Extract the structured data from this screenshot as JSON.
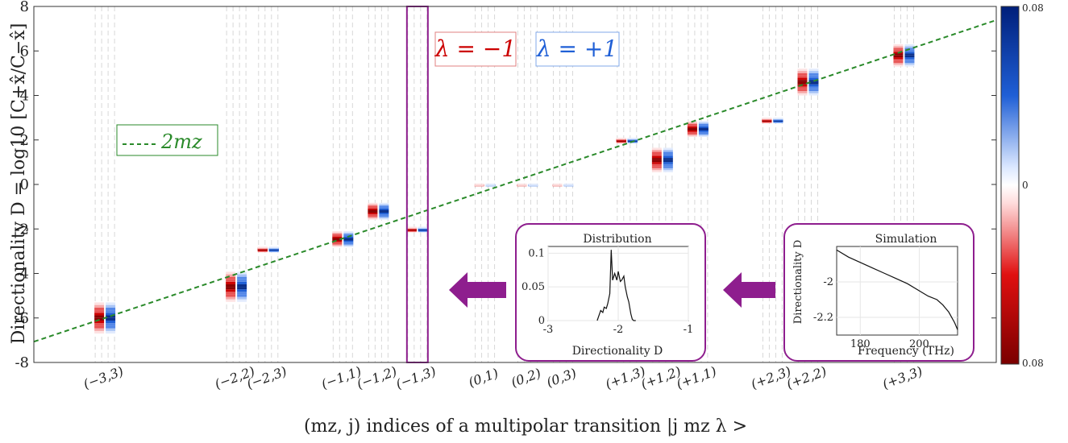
{
  "chart_data": {
    "type": "heatmap",
    "ylabel": "Directionality D = log10 [C+x̂/C−x̂]",
    "xlabel": "(mz, j) indices of a multipolar transition |j  mz  λ >",
    "ylim": [
      -8,
      8
    ],
    "yticks": [
      "-8",
      "-6",
      "-4",
      "-2",
      "0",
      "2",
      "4",
      "6",
      "8"
    ],
    "grid": false,
    "categories": [
      "(−3,3)",
      "(−2,2)",
      "(−2,3)",
      "(−1,1)",
      "(−1,2)",
      "(−1,3)",
      "(0,1)",
      "(0,2)",
      "(0,3)",
      "(+1,3)",
      "(+1,2)",
      "(+1,1)",
      "(+2,3)",
      "(+2,2)",
      "(+3,3)"
    ],
    "category_positions": [
      1,
      2.85,
      3.3,
      4.35,
      4.85,
      5.4,
      6.35,
      6.95,
      7.45,
      8.35,
      8.85,
      9.35,
      10.4,
      10.9,
      12.25
    ],
    "xlim": [
      0,
      13.55
    ],
    "centers": [
      -6.0,
      -4.6,
      -2.9,
      -2.45,
      -1.2,
      -2.0,
      0.0,
      0.0,
      0.0,
      2.0,
      1.1,
      2.5,
      2.9,
      4.6,
      5.8
    ],
    "spreads": [
      1.4,
      1.35,
      0.2,
      0.7,
      0.75,
      0.2,
      0.02,
      0.02,
      0.02,
      0.2,
      1.1,
      0.7,
      0.2,
      1.2,
      1.0
    ],
    "series": [
      {
        "name": "λ = −1",
        "color": "#cc0000"
      },
      {
        "name": "λ = +1",
        "color": "#1f5fd6"
      }
    ],
    "trend_line": {
      "name": "2mz",
      "color": "#2a8a2a",
      "slope": 2,
      "intercept": 0
    },
    "highlighted_category": "(−1,3)",
    "colorbar": {
      "labels": [
        "0.08",
        "0",
        "0.08"
      ],
      "colors": [
        "#001f7a",
        "#ffffff",
        "#7a0000"
      ]
    },
    "inset_distribution": {
      "title": "Distribution",
      "xlabel": "Directionality D",
      "xticks": [
        "-3",
        "-2",
        "-1"
      ],
      "yticks": [
        "0",
        "0.05",
        "0.1"
      ],
      "xlim": [
        -3,
        -1
      ],
      "ylim": [
        0,
        0.11
      ],
      "x": [
        -2.3,
        -2.25,
        -2.22,
        -2.2,
        -2.17,
        -2.15,
        -2.12,
        -2.1,
        -2.08,
        -2.05,
        -2.02,
        -2.0,
        -1.97,
        -1.95,
        -1.92,
        -1.9,
        -1.87,
        -1.85,
        -1.82,
        -1.8,
        -1.78,
        -1.75
      ],
      "y": [
        0.0,
        0.015,
        0.012,
        0.02,
        0.018,
        0.025,
        0.04,
        0.105,
        0.06,
        0.07,
        0.06,
        0.073,
        0.058,
        0.06,
        0.066,
        0.05,
        0.035,
        0.028,
        0.01,
        0.002,
        0.0,
        0.0
      ]
    },
    "inset_simulation": {
      "title": "Simulation",
      "xlabel": "Frequency (THz)",
      "ylabel": "Directionality D",
      "xticks": [
        "180",
        "200"
      ],
      "yticks": [
        "-2",
        "-2.2"
      ],
      "xlim": [
        172,
        213
      ],
      "ylim": [
        -2.3,
        -1.8
      ],
      "x": [
        172,
        176,
        180,
        184,
        188,
        192,
        196,
        200,
        203,
        206,
        208,
        210,
        212,
        213
      ],
      "y": [
        -1.82,
        -1.86,
        -1.89,
        -1.92,
        -1.95,
        -1.98,
        -2.01,
        -2.05,
        -2.08,
        -2.1,
        -2.13,
        -2.17,
        -2.23,
        -2.27
      ]
    }
  }
}
